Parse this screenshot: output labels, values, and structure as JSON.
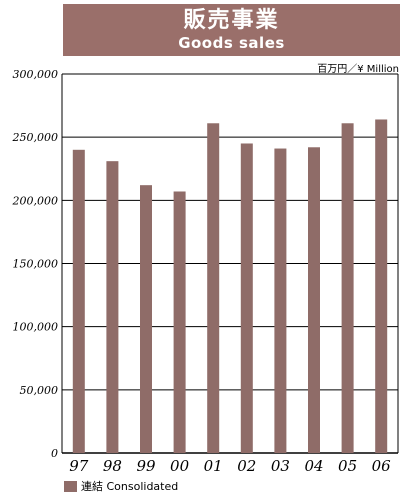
{
  "header": {
    "title_ja": "販売事業",
    "title_en": "Goods sales"
  },
  "unit_label": "百万円／¥ Million",
  "legend": {
    "label": "連結 Consolidated"
  },
  "colors": {
    "bar": "#8f6c68",
    "header_bg": "#9a6f6a"
  },
  "chart_data": {
    "type": "bar",
    "title": "販売事業 Goods sales",
    "categories": [
      "97",
      "98",
      "99",
      "00",
      "01",
      "02",
      "03",
      "04",
      "05",
      "06"
    ],
    "series": [
      {
        "name": "連結 Consolidated",
        "values": [
          240000,
          231000,
          212000,
          207000,
          261000,
          245000,
          241000,
          242000,
          261000,
          264000
        ]
      }
    ],
    "ylim": [
      0,
      300000
    ],
    "yticks": [
      0,
      50000,
      100000,
      150000,
      200000,
      250000,
      300000
    ],
    "ytick_labels": [
      "0",
      "50,000",
      "100,000",
      "150,000",
      "200,000",
      "250,000",
      "300,000"
    ],
    "grid": true
  }
}
